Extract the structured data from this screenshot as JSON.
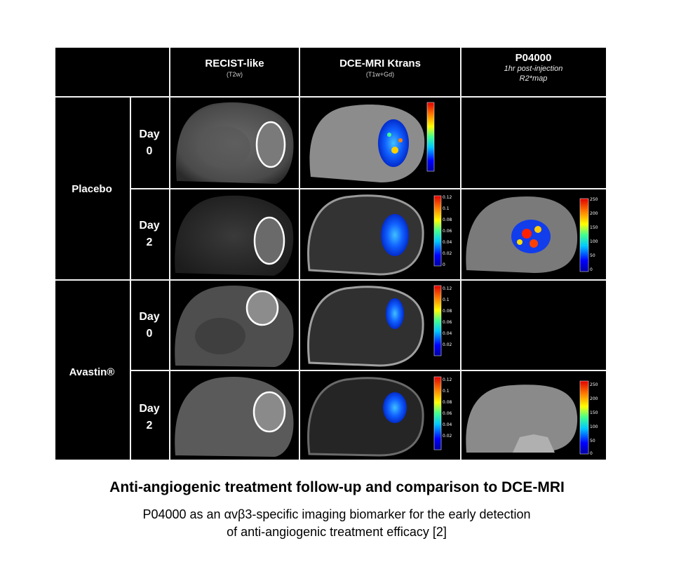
{
  "columns": [
    {
      "title": "RECIST-like",
      "subtitle": "(T2w)"
    },
    {
      "title": "DCE-MRI Ktrans",
      "subtitle": "(T1w+Gd)"
    },
    {
      "title": "P04000",
      "subtitle_lines": [
        "1hr post-injection",
        "R2*map"
      ]
    }
  ],
  "groups": [
    {
      "label": "Placebo",
      "days": [
        {
          "label": "Day",
          "num": "0"
        },
        {
          "label": "Day",
          "num": "2"
        }
      ]
    },
    {
      "label": "Avastin®",
      "days": [
        {
          "label": "Day",
          "num": "0"
        },
        {
          "label": "Day",
          "num": "2"
        }
      ]
    }
  ],
  "ktrans_scale": [
    "0.12",
    "0.1",
    "0.08",
    "0.06",
    "0.04",
    "0.02",
    "0"
  ],
  "r2_scale": [
    "250",
    "200",
    "150",
    "100",
    "50",
    "0"
  ],
  "caption": {
    "title": "Anti-angiogenic treatment follow-up and comparison to DCE-MRI",
    "line1": "P04000 as an αvβ3-specific imaging biomarker for the early detection",
    "line2": "of anti-angiogenic treatment efficacy [2]"
  },
  "colors": {
    "panel_bg": "#000000",
    "grid_line": "#f2f2f2",
    "hot": "#ff0000",
    "cold": "#0000ff"
  }
}
